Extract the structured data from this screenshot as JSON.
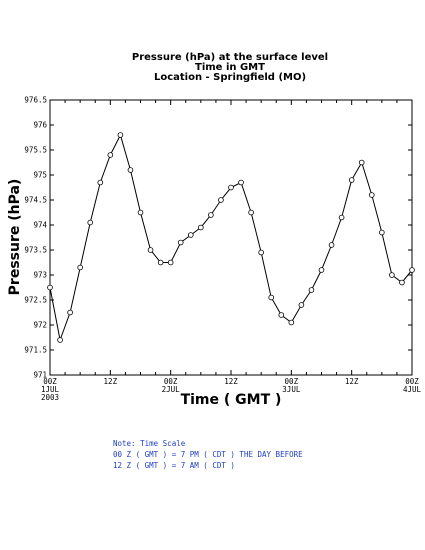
{
  "chart_data": {
    "type": "line",
    "title": [
      "Pressure (hPa) at the surface level",
      "Time in GMT",
      "Location - Springfield (MO)"
    ],
    "xlabel": "Time ( GMT )",
    "ylabel": "Pressure (hPa)",
    "ylim": [
      971,
      976.5
    ],
    "yticks": [
      "971",
      "971.5",
      "972",
      "972.5",
      "973",
      "973.5",
      "974",
      "974.5",
      "975",
      "975.5",
      "976",
      "976.5"
    ],
    "xlim_hours": [
      0,
      72
    ],
    "xticks": [
      {
        "hour": 0,
        "line1": "00Z",
        "line2": "1JUL",
        "line3": "2003"
      },
      {
        "hour": 12,
        "line1": "12Z",
        "line2": "",
        "line3": ""
      },
      {
        "hour": 24,
        "line1": "00Z",
        "line2": "2JUL",
        "line3": ""
      },
      {
        "hour": 36,
        "line1": "12Z",
        "line2": "",
        "line3": ""
      },
      {
        "hour": 48,
        "line1": "00Z",
        "line2": "3JUL",
        "line3": ""
      },
      {
        "hour": 60,
        "line1": "12Z",
        "line2": "",
        "line3": ""
      },
      {
        "hour": 72,
        "line1": "00Z",
        "line2": "4JUL",
        "line3": ""
      }
    ],
    "series": [
      {
        "x": [
          0,
          2,
          4,
          6,
          8,
          10,
          12,
          14,
          16,
          18,
          20,
          22,
          24,
          26,
          28,
          30,
          32,
          34,
          36,
          38,
          40,
          42,
          44,
          46,
          48,
          50,
          52,
          54,
          56,
          58,
          60,
          62,
          64,
          66,
          68,
          70,
          72
        ],
        "values": [
          972.75,
          971.7,
          972.25,
          973.15,
          974.05,
          974.85,
          975.4,
          975.8,
          975.1,
          974.25,
          973.5,
          973.25,
          973.25,
          973.65,
          973.8,
          973.95,
          974.2,
          974.5,
          974.75,
          974.85,
          974.25,
          973.45,
          972.55,
          972.2,
          972.05,
          972.4,
          972.7,
          973.1,
          973.6,
          974.15,
          974.9,
          975.25,
          974.6,
          973.85,
          973.0,
          972.85,
          973.1
        ]
      }
    ],
    "grid": false
  },
  "note": {
    "line1": "Note: Time Scale",
    "line2": "00 Z ( GMT ) = 7 PM ( CDT ) THE DAY BEFORE",
    "line3": "12 Z ( GMT ) = 7 AM ( CDT )"
  }
}
